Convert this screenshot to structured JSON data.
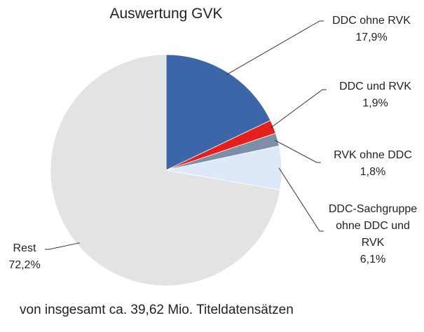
{
  "chart_data": {
    "type": "pie",
    "title": "Auswertung GVK",
    "subtitle": "von insgesamt ca. 39,62 Mio. Titeldatensätzen",
    "categories": [
      "DDC ohne RVK",
      "DDC und RVK",
      "RVK ohne DDC",
      "DDC-Sachgruppe ohne DDC und RVK",
      "Rest"
    ],
    "values": [
      17.9,
      1.9,
      1.8,
      6.1,
      72.2
    ],
    "value_labels": [
      "17,9%",
      "1,9%",
      "1,8%",
      "6,1%",
      "72,2%"
    ],
    "colors": [
      "#3d66a9",
      "#e3201c",
      "#7d8ea6",
      "#dde9f9",
      "#e3e3e3"
    ]
  }
}
